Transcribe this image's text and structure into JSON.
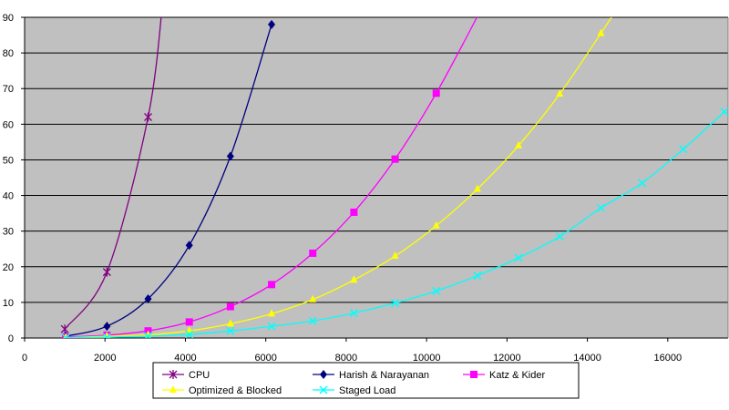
{
  "chart_data": {
    "type": "line",
    "title": "",
    "xlabel": "",
    "ylabel": "",
    "xlim": [
      0,
      17500
    ],
    "ylim": [
      0,
      90
    ],
    "x_ticks": [
      0,
      2000,
      4000,
      6000,
      8000,
      10000,
      12000,
      14000,
      16000
    ],
    "x_tick_labels": [
      "0",
      "2000",
      "4000",
      "6000",
      "8000",
      "10000",
      "12000",
      "14000",
      "16000"
    ],
    "y_ticks": [
      0,
      10,
      20,
      30,
      40,
      50,
      60,
      70,
      80,
      90
    ],
    "y_tick_labels": [
      "0",
      "10",
      "20",
      "30",
      "40",
      "50",
      "60",
      "70",
      "80",
      "90"
    ],
    "grid": "horizontal",
    "legend_position": "bottom",
    "plot_background": "#c0c0c0",
    "series": [
      {
        "name": "CPU",
        "color": "#800080",
        "marker": "star",
        "points": [
          [
            1000,
            2.5
          ],
          [
            2048,
            18.5
          ],
          [
            3072,
            62
          ],
          [
            3450,
            96
          ]
        ]
      },
      {
        "name": "Harish & Narayanan",
        "color": "#000080",
        "marker": "diamond",
        "points": [
          [
            1024,
            0.5
          ],
          [
            2048,
            3.3
          ],
          [
            3072,
            11
          ],
          [
            4096,
            26
          ],
          [
            5120,
            51
          ],
          [
            6144,
            88
          ]
        ]
      },
      {
        "name": "Katz & Kider",
        "color": "#ff00ff",
        "marker": "square",
        "points": [
          [
            1024,
            0.3
          ],
          [
            2048,
            0.8
          ],
          [
            3072,
            2
          ],
          [
            4096,
            4.5
          ],
          [
            5120,
            8.8
          ],
          [
            6144,
            15
          ],
          [
            7168,
            23.8
          ],
          [
            8192,
            35.3
          ],
          [
            9216,
            50.2
          ],
          [
            10240,
            68.7
          ],
          [
            11300,
            91
          ]
        ]
      },
      {
        "name": "Optimized & Blocked",
        "color": "#ffff00",
        "marker": "triangle",
        "points": [
          [
            1024,
            0.1
          ],
          [
            2048,
            0.5
          ],
          [
            3072,
            0.9
          ],
          [
            4096,
            2
          ],
          [
            5120,
            4
          ],
          [
            6144,
            6.8
          ],
          [
            7168,
            10.8
          ],
          [
            8192,
            16.3
          ],
          [
            9216,
            23
          ],
          [
            10240,
            31.5
          ],
          [
            11264,
            41.8
          ],
          [
            12288,
            54
          ],
          [
            13312,
            68.5
          ],
          [
            14336,
            85.5
          ],
          [
            14650,
            91
          ]
        ]
      },
      {
        "name": "Staged Load",
        "color": "#00ffff",
        "marker": "x",
        "points": [
          [
            1024,
            0.1
          ],
          [
            2048,
            0.2
          ],
          [
            3072,
            0.5
          ],
          [
            4096,
            1
          ],
          [
            5120,
            2
          ],
          [
            6144,
            3.3
          ],
          [
            7168,
            4.8
          ],
          [
            8192,
            7
          ],
          [
            9216,
            9.8
          ],
          [
            10240,
            13.2
          ],
          [
            11264,
            17.5
          ],
          [
            12288,
            22.5
          ],
          [
            13312,
            28.5
          ],
          [
            14336,
            36.5
          ],
          [
            15360,
            43.5
          ],
          [
            16384,
            53
          ],
          [
            17408,
            63.5
          ]
        ]
      }
    ]
  }
}
